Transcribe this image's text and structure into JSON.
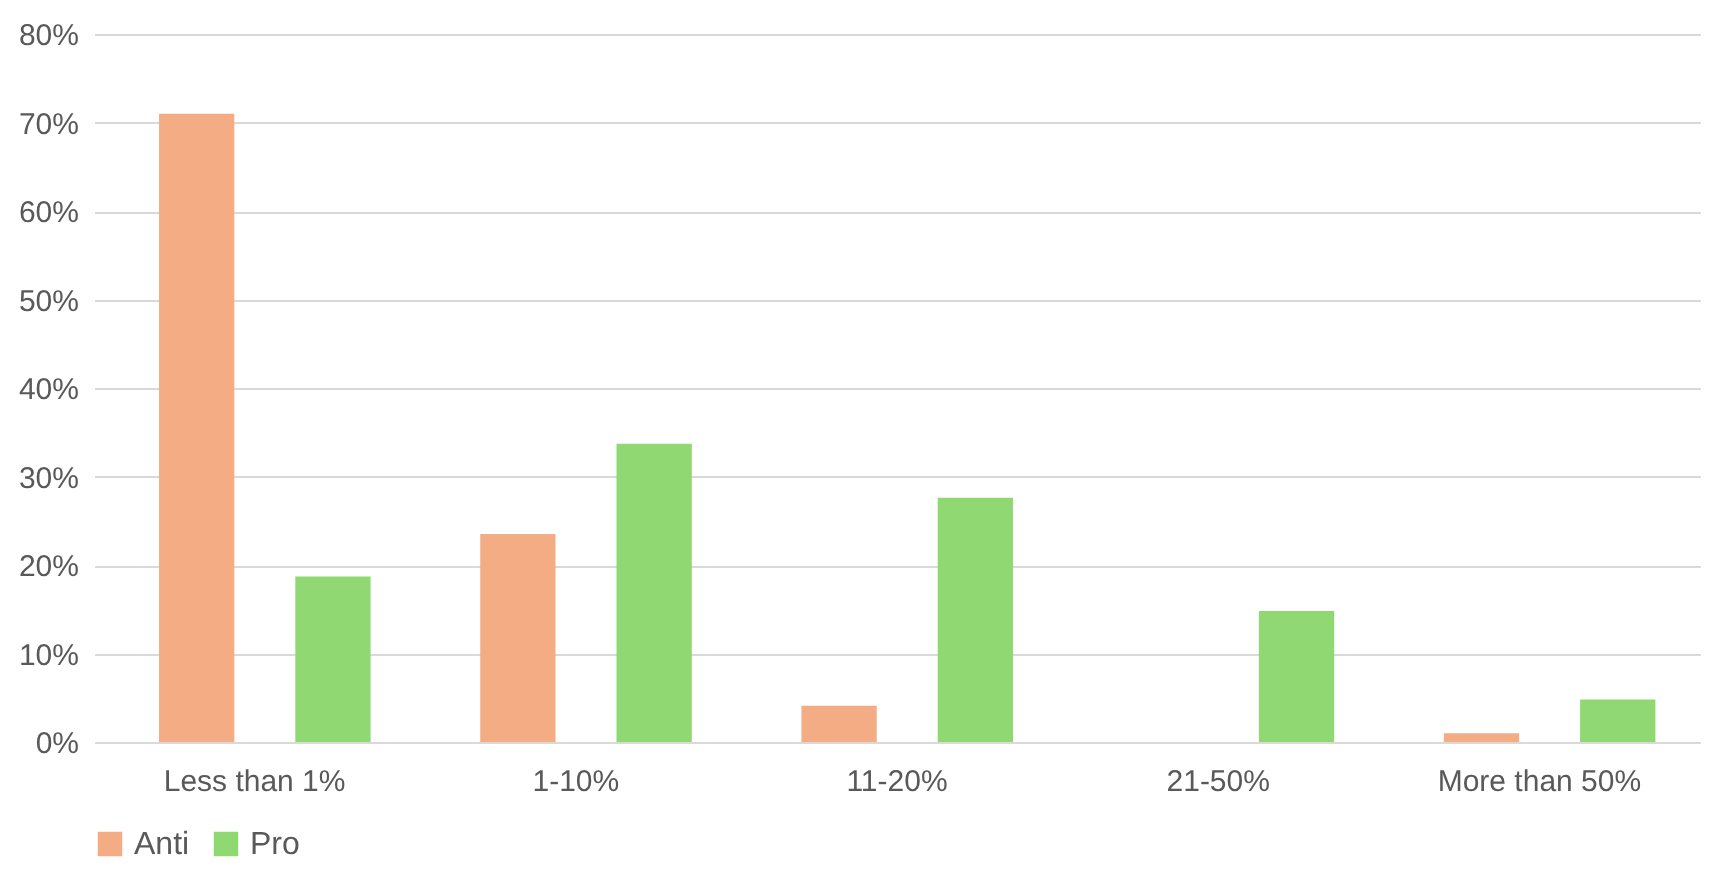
{
  "chart_data": {
    "type": "bar",
    "categories": [
      "Less than 1%",
      "1-10%",
      "11-20%",
      "21-50%",
      "More than 50%"
    ],
    "series": [
      {
        "name": "Anti",
        "color": "#f4ac84",
        "values": [
          71,
          23.5,
          4.1,
          0,
          1
        ]
      },
      {
        "name": "Pro",
        "color": "#8fd872",
        "values": [
          18.7,
          33.7,
          27.6,
          14.8,
          4.8
        ]
      }
    ],
    "ylim": [
      0,
      80
    ],
    "yticks": [
      {
        "value": 0,
        "label": "0%"
      },
      {
        "value": 10,
        "label": "10%"
      },
      {
        "value": 20,
        "label": "20%"
      },
      {
        "value": 30,
        "label": "30%"
      },
      {
        "value": 40,
        "label": "40%"
      },
      {
        "value": 50,
        "label": "50%"
      },
      {
        "value": 60,
        "label": "60%"
      },
      {
        "value": 70,
        "label": "70%"
      },
      {
        "value": 80,
        "label": "80%"
      }
    ],
    "grid": "y",
    "legend": "bottom"
  }
}
